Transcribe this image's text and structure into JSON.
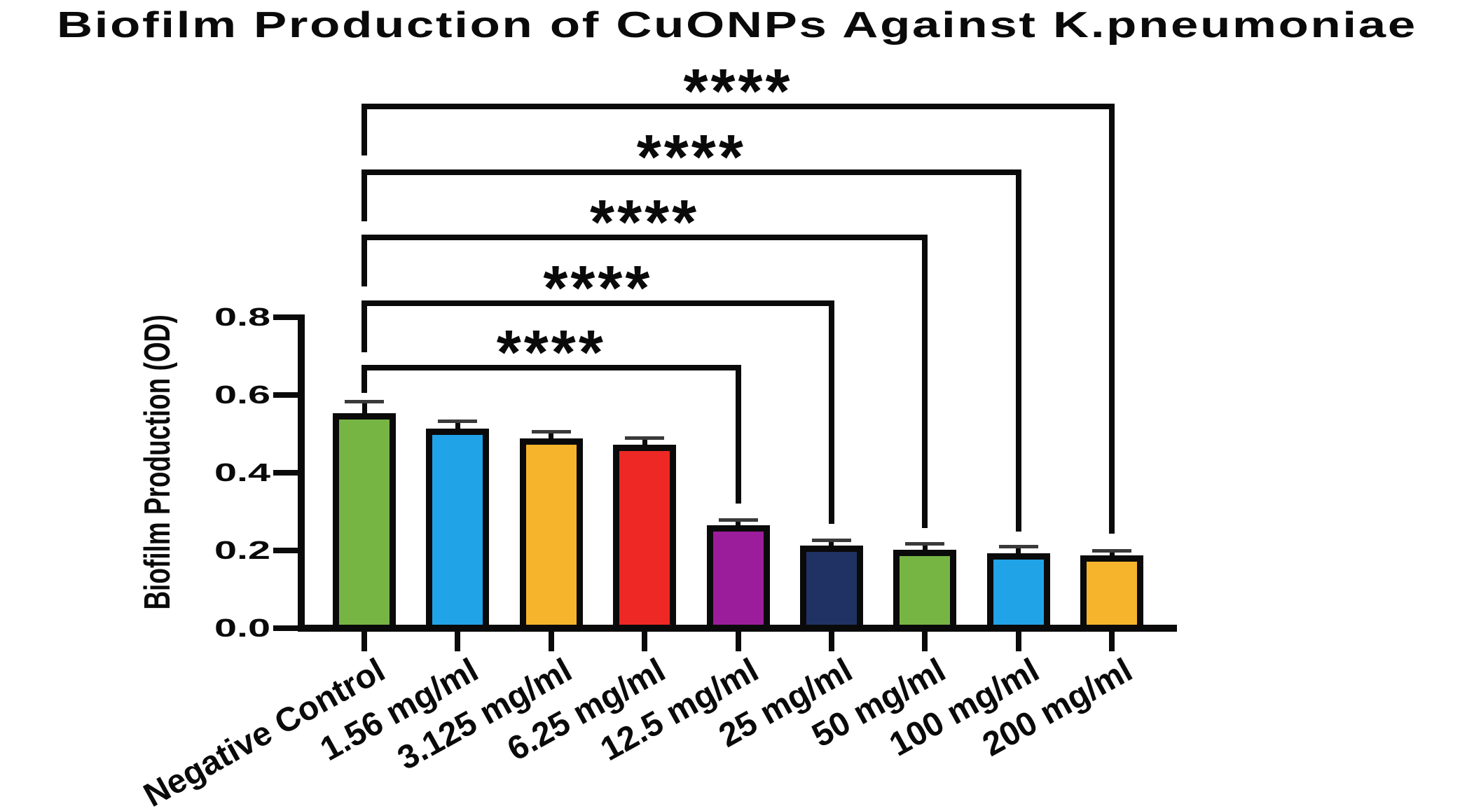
{
  "chart_data": {
    "type": "bar",
    "title": "Biofilm Production of CuONPs Against K.pneumoniae",
    "ylabel": "Biofilm Production (OD)",
    "xlabel": "",
    "categories": [
      "Negative Control",
      "1.56 mg/ml",
      "3.125 mg/ml",
      "6.25 mg/ml",
      "12.5 mg/ml",
      "25 mg/ml",
      "50 mg/ml",
      "100 mg/ml",
      "200 mg/ml"
    ],
    "values": [
      0.553,
      0.513,
      0.488,
      0.472,
      0.265,
      0.213,
      0.202,
      0.193,
      0.187
    ],
    "errors": [
      0.027,
      0.016,
      0.014,
      0.014,
      0.011,
      0.01,
      0.012,
      0.014,
      0.009
    ],
    "bar_colors": [
      "#76b544",
      "#21a3e8",
      "#f6b42c",
      "#ee2824",
      "#9c1d9b",
      "#1f3263",
      "#76b544",
      "#21a3e8",
      "#f6b42c"
    ],
    "border_color": "#0a0a0a",
    "error_cap_color": "#3a3a3a",
    "ylim": [
      0,
      0.8
    ],
    "ytick_labels": [
      "0.0",
      "0.2",
      "0.4",
      "0.6",
      "0.8"
    ],
    "grid": false,
    "legend": null,
    "significance": [
      {
        "from": "Negative Control",
        "to": "12.5 mg/ml",
        "label": "****"
      },
      {
        "from": "Negative Control",
        "to": "25 mg/ml",
        "label": "****"
      },
      {
        "from": "Negative Control",
        "to": "50 mg/ml",
        "label": "****"
      },
      {
        "from": "Negative Control",
        "to": "100 mg/ml",
        "label": "****"
      },
      {
        "from": "Negative Control",
        "to": "200 mg/ml",
        "label": "****"
      }
    ]
  }
}
